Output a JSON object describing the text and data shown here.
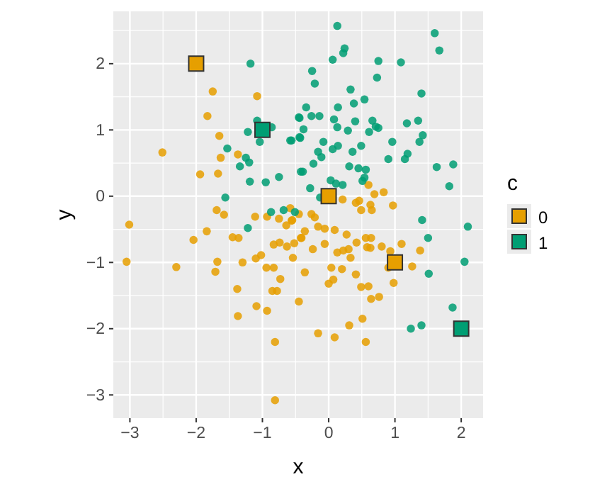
{
  "chart_data": {
    "type": "scatter",
    "xlabel": "x",
    "ylabel": "y",
    "legend_title": "c",
    "legend": "right",
    "grid": true,
    "marker": "circle",
    "xlim": [
      -3.25,
      2.33
    ],
    "ylim": [
      -3.35,
      2.79
    ],
    "xticks": [
      -3,
      -2,
      -1,
      0,
      1,
      2
    ],
    "yticks": [
      -3,
      -2,
      -1,
      0,
      1,
      2
    ],
    "series": [
      {
        "name": "0",
        "color": "#e69f00",
        "x": [
          -1.75,
          -1.08,
          -1.83,
          -1.65,
          -2.51,
          -1.63,
          -1.37,
          -1.94,
          -1.67,
          -1.69,
          -0.58,
          0.6,
          0.69,
          0.83,
          0.21,
          0.46,
          0.41,
          0.63,
          0.97,
          0.49,
          0.65,
          -3.01,
          -3.05,
          -2.3,
          -2.04,
          -1.84,
          -1.58,
          -1.11,
          -0.93,
          -1.68,
          -1.71,
          -1.45,
          -1.36,
          -1.3,
          -1.1,
          -1.02,
          -0.94,
          -0.83,
          -0.73,
          -0.83,
          -0.74,
          -0.63,
          -0.52,
          -0.54,
          -0.75,
          -0.64,
          -0.56,
          -0.42,
          -1.38,
          -0.85,
          -0.78,
          -0.45,
          -1.09,
          -0.93,
          -1.37,
          -0.81,
          -0.81,
          -0.45,
          -0.26,
          -0.21,
          -0.55,
          -0.36,
          -0.41,
          -0.16,
          -0.06,
          0.09,
          0.27,
          0.42,
          0.56,
          0.64,
          -0.24,
          -0.06,
          0.13,
          0.22,
          0.3,
          0.33,
          0.58,
          0.63,
          0.8,
          0.93,
          1.1,
          1.38,
          0.04,
          0.2,
          0.41,
          -0.36,
          0.07,
          0.0,
          0.49,
          0.6,
          0.9,
          0.98,
          1.26,
          0.64,
          0.76,
          0.31,
          0.51,
          -0.16,
          0.09,
          0.56
        ],
        "values": [
          1.58,
          1.51,
          1.21,
          0.91,
          0.66,
          0.58,
          0.63,
          0.33,
          0.34,
          -0.21,
          -0.18,
          0.17,
          0.03,
          0.06,
          -0.05,
          -0.07,
          -0.1,
          -0.13,
          -0.14,
          -0.21,
          -0.21,
          -0.43,
          -0.99,
          -1.07,
          -0.66,
          -0.53,
          -0.28,
          -0.31,
          -0.31,
          -0.99,
          -1.14,
          -0.62,
          -0.63,
          -1.0,
          -0.94,
          -0.89,
          -1.08,
          -1.08,
          -1.25,
          -0.73,
          -0.7,
          -0.76,
          -0.71,
          -0.93,
          -0.34,
          -0.44,
          -0.37,
          -0.63,
          -1.4,
          -1.43,
          -1.43,
          -1.59,
          -1.66,
          -1.73,
          -1.81,
          -2.2,
          -3.08,
          -0.27,
          -0.27,
          -0.32,
          -0.36,
          -0.53,
          -0.63,
          -0.46,
          -0.49,
          -0.51,
          -0.58,
          -0.7,
          -0.63,
          -0.63,
          -0.8,
          -0.72,
          -0.85,
          -0.82,
          -0.8,
          -0.93,
          -0.77,
          -0.78,
          -0.76,
          -0.83,
          -0.72,
          -0.82,
          -1.08,
          -1.1,
          -1.18,
          -1.15,
          -1.26,
          -1.32,
          -1.37,
          -1.36,
          -1.08,
          -1.31,
          -1.06,
          -1.55,
          -1.52,
          -1.95,
          -1.85,
          -2.07,
          -2.13,
          -2.2
        ]
      },
      {
        "name": "1",
        "color": "#009e73",
        "x": [
          -1.18,
          -1.08,
          -1.22,
          -0.86,
          -1.04,
          -0.58,
          -0.45,
          -0.44,
          -1.53,
          -1.25,
          -1.2,
          -1.34,
          -1.19,
          -0.95,
          -0.75,
          -0.42,
          -1.56,
          -0.87,
          -0.68,
          0.13,
          1.6,
          1.67,
          0.24,
          0.22,
          0.06,
          0.75,
          1.09,
          -0.25,
          -0.21,
          0.73,
          0.33,
          0.54,
          0.38,
          1.4,
          -0.34,
          0.14,
          -0.44,
          -0.26,
          -0.14,
          0.08,
          0.4,
          0.66,
          0.71,
          0.75,
          0.61,
          0.13,
          0.29,
          1.18,
          1.35,
          -0.38,
          -0.43,
          -0.56,
          1.42,
          1.37,
          0.96,
          -0.08,
          0.14,
          0.06,
          0.49,
          -0.16,
          0.36,
          -0.11,
          1.19,
          1.15,
          0.9,
          -0.23,
          0.31,
          0.45,
          0.56,
          1.63,
          1.88,
          -0.39,
          0.54,
          0.51,
          0.03,
          0.11,
          0.21,
          -0.28,
          1.82,
          -0.13,
          -1.22,
          -0.51,
          1.41,
          2.1,
          1.5,
          2.05,
          1.51,
          1.87,
          1.24,
          1.4
        ],
        "values": [
          2.0,
          1.14,
          0.97,
          1.04,
          0.82,
          0.84,
          1.19,
          0.89,
          0.72,
          0.58,
          0.51,
          0.45,
          0.22,
          0.21,
          0.29,
          0.37,
          -0.02,
          -0.24,
          -0.21,
          2.57,
          2.46,
          2.2,
          2.23,
          2.16,
          2.06,
          2.04,
          2.02,
          1.89,
          1.7,
          1.79,
          1.61,
          1.46,
          1.4,
          1.55,
          1.34,
          1.34,
          1.18,
          1.21,
          1.21,
          1.16,
          1.13,
          1.14,
          1.05,
          1.03,
          0.97,
          1.04,
          0.99,
          1.1,
          1.14,
          1.01,
          0.88,
          0.84,
          0.92,
          0.82,
          0.82,
          0.82,
          0.76,
          0.71,
          0.76,
          0.67,
          0.67,
          0.59,
          0.64,
          0.56,
          0.56,
          0.49,
          0.45,
          0.42,
          0.4,
          0.44,
          0.48,
          0.37,
          0.28,
          0.23,
          0.24,
          0.19,
          0.17,
          0.12,
          0.15,
          -0.02,
          -0.48,
          -0.24,
          -0.36,
          -0.46,
          -0.63,
          -0.99,
          -1.17,
          -1.68,
          -2.0,
          -1.95
        ]
      },
      {
        "type": "scatter",
        "marker": "square",
        "x": [
          -2,
          -1,
          0,
          1,
          2
        ],
        "values": [
          2,
          1,
          0,
          -1,
          -2
        ],
        "colors": [
          "#e69f00",
          "#009e73",
          "#e69f00",
          "#e69f00",
          "#009e73"
        ]
      }
    ]
  }
}
